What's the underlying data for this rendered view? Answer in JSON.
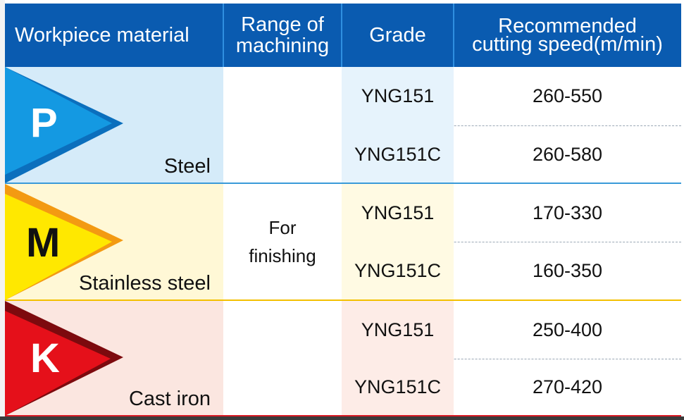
{
  "header": {
    "workpiece_material": "Workpiece material",
    "range_line1": "Range of",
    "range_line2": "machining",
    "grade": "Grade",
    "speed_line1": "Recommended",
    "speed_line2": "cutting speed(m/min)"
  },
  "range_value_line1": "For",
  "range_value_line2": "finishing",
  "materials": [
    {
      "letter": "P",
      "name": "Steel",
      "colors": {
        "bg": "#d5ebf9",
        "grade_bg": "#e6f3fc",
        "flag": "#1499e2",
        "flag_edge": "#0b6fbd",
        "letter": "#ffffff",
        "divider": "#3a9ad9"
      },
      "rows": [
        {
          "grade": "YNG151",
          "speed": "260-550"
        },
        {
          "grade": "YNG151C",
          "speed": "260-580"
        }
      ]
    },
    {
      "letter": "M",
      "name": "Stainless steel",
      "colors": {
        "bg": "#fff8d6",
        "grade_bg": "#fffae3",
        "flag": "#ffe800",
        "flag_edge": "#f39a12",
        "letter": "#111111",
        "divider": "#f3c000"
      },
      "rows": [
        {
          "grade": "YNG151",
          "speed": "170-330"
        },
        {
          "grade": "YNG151C",
          "speed": "160-350"
        }
      ]
    },
    {
      "letter": "K",
      "name": "Cast iron",
      "colors": {
        "bg": "#fbe6e0",
        "grade_bg": "#fdece7",
        "flag": "#e5101a",
        "flag_edge": "#7d0a0e",
        "letter": "#ffffff",
        "divider": "#d81a25"
      },
      "rows": [
        {
          "grade": "YNG151",
          "speed": "250-400"
        },
        {
          "grade": "YNG151C",
          "speed": "270-420"
        }
      ]
    }
  ]
}
